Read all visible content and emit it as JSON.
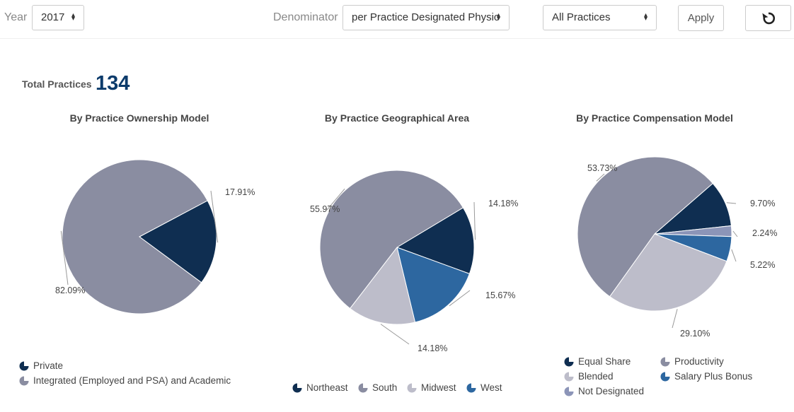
{
  "toolbar": {
    "year_label": "Year",
    "year_value": "2017",
    "denominator_label": "Denominator",
    "denominator_value": "per Practice Designated Physic",
    "practices_value": "All Practices",
    "apply_label": "Apply",
    "reset_icon": "refresh-icon"
  },
  "summary": {
    "total_label": "Total Practices",
    "total_value": "134"
  },
  "colors": {
    "navy": "#0f2e51",
    "slate": "#8a8da1",
    "light": "#bdbdca",
    "blue": "#2d67a0",
    "lavender": "#8c95b8"
  },
  "chart_data": [
    {
      "type": "pie",
      "title": "By Practice Ownership Model",
      "slices": [
        {
          "name": "Private",
          "value": 17.91,
          "label": "17.91%",
          "color": "#0f2e51"
        },
        {
          "name": "Integrated (Employed and PSA) and Academic",
          "value": 82.09,
          "label": "82.09%",
          "color": "#8a8da1"
        }
      ],
      "legend": [
        "Private",
        "Integrated (Employed and PSA) and Academic"
      ]
    },
    {
      "type": "pie",
      "title": "By Practice Geographical Area",
      "slices": [
        {
          "name": "Northeast",
          "value": 14.18,
          "label": "14.18%",
          "color": "#0f2e51"
        },
        {
          "name": "West",
          "value": 15.67,
          "label": "15.67%",
          "color": "#2d67a0"
        },
        {
          "name": "Midwest",
          "value": 14.18,
          "label": "14.18%",
          "color": "#bdbdca"
        },
        {
          "name": "South",
          "value": 55.97,
          "label": "55.97%",
          "color": "#8a8da1"
        }
      ],
      "legend": [
        "Northeast",
        "South",
        "Midwest",
        "West"
      ]
    },
    {
      "type": "pie",
      "title": "By Practice Compensation Model",
      "slices": [
        {
          "name": "Equal Share",
          "value": 9.7,
          "label": "9.70%",
          "color": "#0f2e51"
        },
        {
          "name": "Not Designated",
          "value": 2.24,
          "label": "2.24%",
          "color": "#8c95b8"
        },
        {
          "name": "Salary Plus Bonus",
          "value": 5.22,
          "label": "5.22%",
          "color": "#2d67a0"
        },
        {
          "name": "Blended",
          "value": 29.1,
          "label": "29.10%",
          "color": "#bdbdca"
        },
        {
          "name": "Productivity",
          "value": 53.73,
          "label": "53.73%",
          "color": "#8a8da1"
        }
      ],
      "legend": [
        "Equal Share",
        "Productivity",
        "Blended",
        "Salary Plus Bonus",
        "Not Designated"
      ]
    }
  ]
}
